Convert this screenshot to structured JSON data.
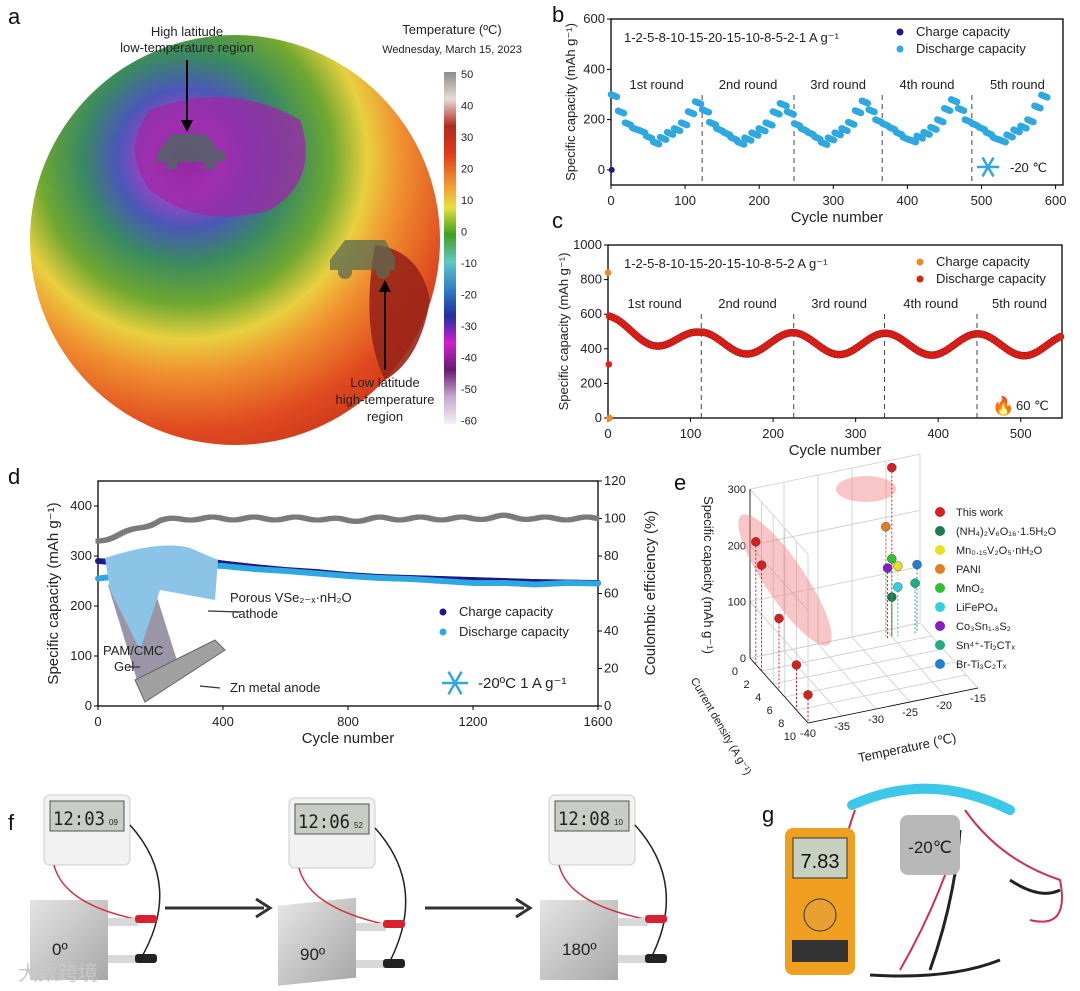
{
  "panel_labels": [
    "a",
    "b",
    "c",
    "d",
    "e",
    "f",
    "g"
  ],
  "panel_a": {
    "title": "Temperature (ºC)",
    "date": "Wednesday, March 15, 2023",
    "colorbar_ticks": [
      "50",
      "40",
      "30",
      "20",
      "10",
      "0",
      "-10",
      "-20",
      "-30",
      "-40",
      "-50",
      "-60"
    ],
    "colorbar_colors": [
      "#8c8c8c",
      "#e8dcd8",
      "#b02a20",
      "#e03a18",
      "#f08a30",
      "#e8e040",
      "#40a020",
      "#60c8c0",
      "#3080c8",
      "#2030a0",
      "#d020d0",
      "#6a1a70",
      "#c8a8d0",
      "#f4f0f4"
    ],
    "annotation_top": [
      "High latitude",
      "low-temperature region"
    ],
    "annotation_bottom": [
      "Low latitude",
      "high-temperature",
      "region"
    ]
  },
  "chart_data": [
    {
      "panel": "b",
      "type": "scatter",
      "title": "1-2-5-8-10-15-20-15-10-8-5-2-1 A g⁻¹",
      "xlabel": "Cycle number",
      "ylabel": "Specific capacity (mAh g⁻¹)",
      "xlim": [
        0,
        610
      ],
      "ylim": [
        -60,
        600
      ],
      "xticks": [
        "0",
        "100",
        "200",
        "300",
        "400",
        "500",
        "600"
      ],
      "yticks": [
        "0",
        "200",
        "400",
        "600"
      ],
      "legend": [
        "Charge capacity",
        "Discharge capacity"
      ],
      "colors": [
        "#1a1a8a",
        "#2fa8e0"
      ],
      "round_labels": [
        "1st round",
        "2nd round",
        "3rd round",
        "4th round",
        "5th round"
      ],
      "round_boundaries": [
        123,
        247,
        366,
        487
      ],
      "condition": "-20 ℃",
      "step_capacities": [
        [
          300,
          235,
          188,
          168,
          158,
          135,
          112,
          130,
          150,
          165,
          188,
          232,
          272
        ],
        [
          240,
          190,
          165,
          150,
          130,
          112,
          128,
          148,
          165,
          188,
          232,
          265,
          232
        ],
        [
          185,
          165,
          150,
          132,
          110,
          128,
          148,
          165,
          190,
          236,
          275,
          240,
          200
        ],
        [
          185,
          170,
          150,
          130,
          120,
          135,
          150,
          170,
          200,
          245,
          280,
          245,
          200
        ],
        [
          185,
          170,
          150,
          130,
          120,
          140,
          160,
          175,
          200,
          255,
          298
        ]
      ]
    },
    {
      "panel": "c",
      "type": "scatter",
      "title": "1-2-5-8-10-15-20-15-10-8-5-2 A g⁻¹",
      "xlabel": "Cycle number",
      "ylabel": "Specific capacity (mAh g⁻¹)",
      "xlim": [
        0,
        550
      ],
      "ylim": [
        0,
        1000
      ],
      "xticks": [
        "0",
        "100",
        "200",
        "300",
        "400",
        "500"
      ],
      "yticks": [
        "0",
        "200",
        "400",
        "600",
        "800",
        "1000"
      ],
      "legend": [
        "Charge capacity",
        "Discharge capacity"
      ],
      "colors": [
        "#f08a20",
        "#e02018"
      ],
      "round_labels": [
        "1st round",
        "2nd round",
        "3rd round",
        "4th round",
        "5th round"
      ],
      "round_boundaries": [
        113,
        225,
        335,
        447
      ],
      "condition": "60 ℃",
      "wave": {
        "period": 112,
        "max_start": 600,
        "min": 375,
        "peak": 500
      }
    },
    {
      "panel": "d",
      "type": "scatter",
      "xlabel": "Cycle number",
      "ylabel": "Specific capacity (mAh g⁻¹)",
      "y2label": "Coulombic efficiency (%)",
      "xlim": [
        0,
        1600
      ],
      "ylim": [
        0,
        450
      ],
      "y2lim": [
        0,
        120
      ],
      "xticks": [
        "0",
        "400",
        "800",
        "1200",
        "1600"
      ],
      "yticks": [
        "0",
        "100",
        "200",
        "300",
        "400"
      ],
      "y2ticks": [
        "0",
        "20",
        "40",
        "60",
        "80",
        "100",
        "120"
      ],
      "legend": [
        "Charge capacity",
        "Discharge capacity"
      ],
      "colors": [
        "#1a1a8a",
        "#2fa8e0",
        "#7a7a7a"
      ],
      "condition": "-20ºC  1 A g⁻¹",
      "inset_labels": [
        "Porous VSe₂₋ₓ·nH₂O",
        "cathode",
        "PAM/CMC",
        "Gel",
        "Zn metal anode"
      ],
      "x": [
        0,
        100,
        200,
        300,
        400,
        500,
        600,
        700,
        800,
        900,
        1000,
        1100,
        1200,
        1300,
        1400,
        1500,
        1600
      ],
      "series": [
        {
          "name": "Charge capacity",
          "values": [
            290,
            285,
            292,
            295,
            285,
            278,
            272,
            268,
            262,
            258,
            256,
            254,
            252,
            250,
            248,
            247,
            246
          ]
        },
        {
          "name": "Discharge capacity",
          "values": [
            255,
            262,
            275,
            283,
            280,
            274,
            270,
            265,
            260,
            256,
            254,
            250,
            246,
            246,
            243,
            246,
            245
          ]
        },
        {
          "name": "Coulombic efficiency",
          "values": [
            88,
            93,
            99,
            100,
            100,
            100,
            100,
            100,
            99,
            100,
            100,
            100,
            100,
            101,
            100,
            100,
            100
          ]
        }
      ]
    },
    {
      "panel": "e",
      "type": "scatter3d",
      "xlabel": "Temperature (℃)",
      "ylabel": "Current density (A g⁻¹)",
      "zlabel": "Specific capacity (mAh g⁻¹)",
      "xticks": [
        "-40",
        "-35",
        "-30",
        "-25",
        "-20",
        "-15"
      ],
      "yticks": [
        "0",
        "2",
        "4",
        "6",
        "8",
        "10"
      ],
      "zticks": [
        "0",
        "100",
        "200",
        "300"
      ],
      "series": [
        {
          "name": "This work",
          "color": "#d42020",
          "points": [
            [
              -20,
              1,
              300
            ],
            [
              -40,
              1,
              218
            ],
            [
              -40,
              2,
              188
            ],
            [
              -40,
              5,
              128
            ],
            [
              -40,
              8,
              80
            ],
            [
              -40,
              10,
              50
            ]
          ]
        },
        {
          "name": "(NH₄)₂V₆O₁₆·1.5H₂O",
          "color": "#1a7a50",
          "points": [
            [
              -20,
              1,
              70
            ]
          ]
        },
        {
          "name": "Mn₀.₁₅V₂O₅·nH₂O",
          "color": "#e8e020",
          "points": [
            [
              -20,
              1,
              125
            ]
          ]
        },
        {
          "name": "PANI",
          "color": "#e08020",
          "points": [
            [
              -20,
              1,
              195
            ]
          ]
        },
        {
          "name": "MnO₂",
          "color": "#30c030",
          "points": [
            [
              -20,
              1,
              138
            ]
          ]
        },
        {
          "name": "LiFePO₄",
          "color": "#30d0e0",
          "points": [
            [
              -20,
              1,
              88
            ]
          ]
        },
        {
          "name": "Co₃Sn₁.₈S₂",
          "color": "#8020c0",
          "points": [
            [
              -20,
              1.3,
              125
            ]
          ]
        },
        {
          "name": "Sn⁴⁺-Ti₂CTₓ",
          "color": "#20b080",
          "points": [
            [
              -17,
              1.5,
              93
            ]
          ]
        },
        {
          "name": "Br-Ti₃C₂Tₓ",
          "color": "#2080d0",
          "points": [
            [
              -17,
              0.8,
              118
            ]
          ]
        }
      ]
    }
  ],
  "panel_f": {
    "clocks": [
      {
        "time": "12:03",
        "sec": "09"
      },
      {
        "time": "12:06",
        "sec": "52"
      },
      {
        "time": "12:08",
        "sec": "10"
      }
    ],
    "angles": [
      "0º",
      "90º",
      "180º"
    ]
  },
  "panel_g": {
    "multimeter": "7.83",
    "temperature": "-20℃"
  },
  "watermark": "大数跨境"
}
